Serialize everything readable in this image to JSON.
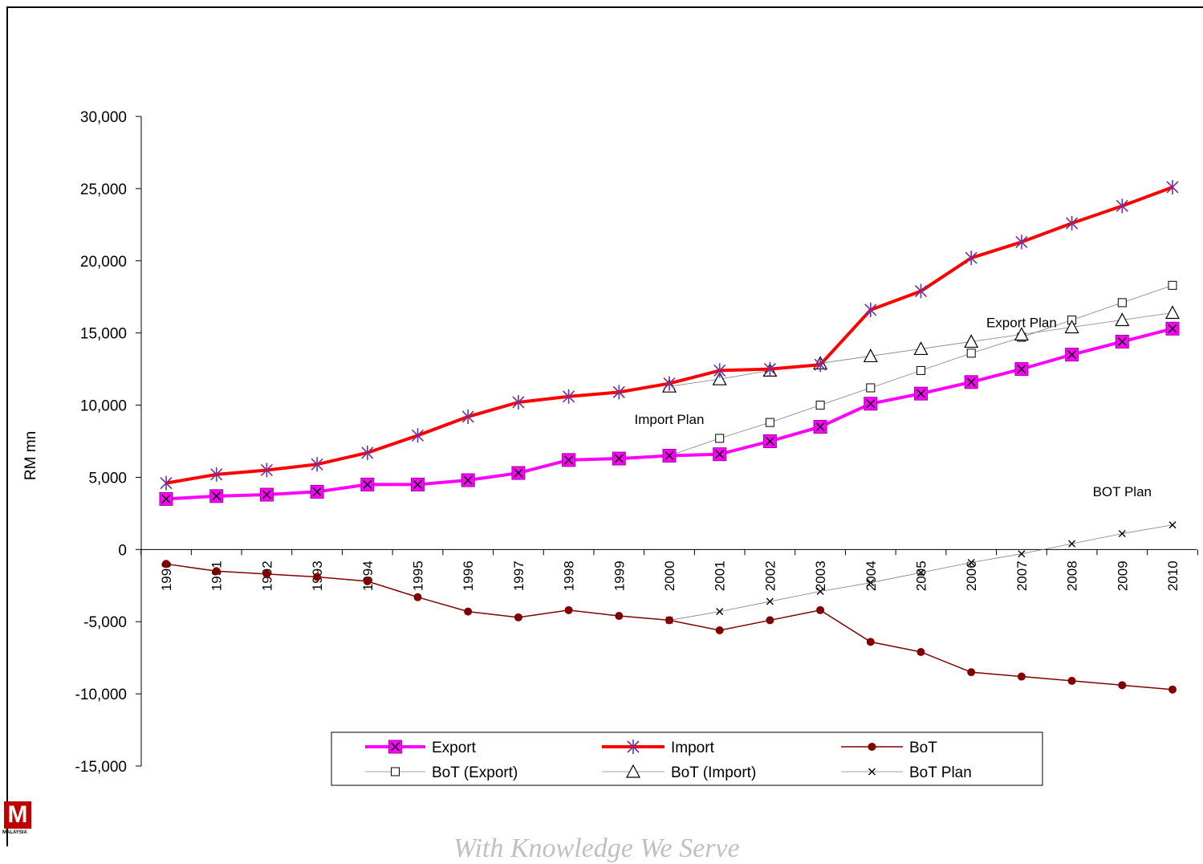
{
  "chart_data": {
    "type": "line",
    "ylabel": "RM mn",
    "xlabel": "",
    "ylim": [
      -15000,
      30000
    ],
    "yticks": [
      -15000,
      -10000,
      -5000,
      0,
      5000,
      10000,
      15000,
      20000,
      25000,
      30000
    ],
    "ytick_labels": [
      "-15,000",
      "-10,000",
      "-5,000",
      "0",
      "5,000",
      "10,000",
      "15,000",
      "20,000",
      "25,000",
      "30,000"
    ],
    "categories": [
      "1990",
      "1991",
      "1992",
      "1993",
      "1994",
      "1995",
      "1996",
      "1997",
      "1998",
      "1999",
      "2000",
      "2001",
      "2002",
      "2003",
      "2004",
      "2005",
      "2006",
      "2007",
      "2008",
      "2009",
      "2010"
    ],
    "series": [
      {
        "name": "Export",
        "color": "#ff00ff",
        "marker": "x-square",
        "values": [
          3500,
          3700,
          3800,
          4000,
          4500,
          4500,
          4800,
          5300,
          6200,
          6300,
          6500,
          6600,
          7500,
          8500,
          10100,
          10800,
          11600,
          12500,
          13500,
          14400,
          15300
        ]
      },
      {
        "name": "Import",
        "color": "#ff0000",
        "marker": "star",
        "values": [
          4600,
          5200,
          5500,
          5900,
          6700,
          7900,
          9200,
          10200,
          10600,
          10900,
          11500,
          12400,
          12500,
          12800,
          16600,
          17900,
          20200,
          21300,
          22600,
          23800,
          25100
        ]
      },
      {
        "name": "BoT",
        "color": "#800000",
        "marker": "dot",
        "values": [
          -1000,
          -1500,
          -1700,
          -1900,
          -2200,
          -3300,
          -4300,
          -4700,
          -4200,
          -4600,
          -4900,
          -5600,
          -4900,
          -4200,
          -6400,
          -7100,
          -8500,
          -8800,
          -9100,
          -9400,
          -9700
        ]
      },
      {
        "name": "BoT (Export)",
        "color": "#808080",
        "marker": "square",
        "values": [
          null,
          null,
          null,
          null,
          null,
          null,
          null,
          null,
          null,
          null,
          6500,
          7700,
          8800,
          10000,
          11200,
          12400,
          13600,
          14700,
          15900,
          17100,
          18300
        ]
      },
      {
        "name": "BoT (Import)",
        "color": "#808080",
        "marker": "triangle",
        "values": [
          null,
          null,
          null,
          null,
          null,
          null,
          null,
          null,
          null,
          null,
          11300,
          11800,
          12400,
          12900,
          13400,
          13900,
          14400,
          14900,
          15400,
          15900,
          16400
        ]
      },
      {
        "name": "BoT Plan",
        "color": "#808080",
        "marker": "x",
        "values": [
          null,
          null,
          null,
          null,
          null,
          null,
          null,
          null,
          null,
          null,
          -4900,
          -4300,
          -3600,
          -2900,
          -2300,
          -1600,
          -900,
          -300,
          400,
          1100,
          1700
        ]
      }
    ],
    "annotations": [
      {
        "text": "Export Plan",
        "x": "2007",
        "y": 15400
      },
      {
        "text": "Import Plan",
        "x": "2000",
        "y": 8700
      },
      {
        "text": "BOT Plan",
        "x": "2009",
        "y": 3700
      }
    ],
    "legend": {
      "placement": "bottom-center"
    }
  },
  "branding": {
    "logo_letter": "M",
    "logo_text": "MALAYSIA",
    "slogan": "With Knowledge We Serve"
  }
}
